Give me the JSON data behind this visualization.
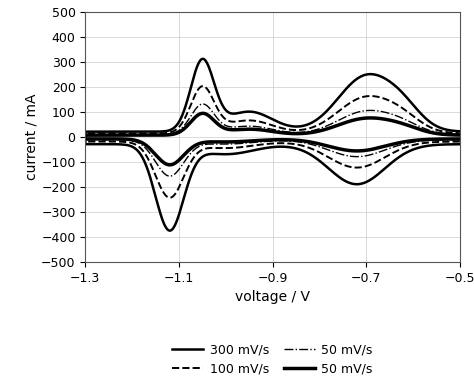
{
  "xlabel": "voltage / V",
  "ylabel": "current / mA",
  "xlim": [
    -1.3,
    -0.5
  ],
  "ylim": [
    -500,
    500
  ],
  "xticks": [
    -1.3,
    -1.1,
    -0.9,
    -0.7,
    -0.5
  ],
  "yticks": [
    -500,
    -400,
    -300,
    -200,
    -100,
    0,
    100,
    200,
    300,
    400,
    500
  ],
  "grid": true,
  "line_color": "#000000",
  "figsize": [
    4.74,
    3.85
  ],
  "dpi": 100,
  "legend_entries": [
    {
      "label": "300 mV/s",
      "linestyle": "solid",
      "linewidth": 2.0
    },
    {
      "label": "100 mV/s",
      "linestyle": "dashed",
      "linewidth": 1.5
    },
    {
      "label": "50 mV/s",
      "linestyle": "dashdot",
      "linewidth": 1.0
    },
    {
      "label": "50 mV/s",
      "linestyle": "solid",
      "linewidth": 2.5
    }
  ]
}
